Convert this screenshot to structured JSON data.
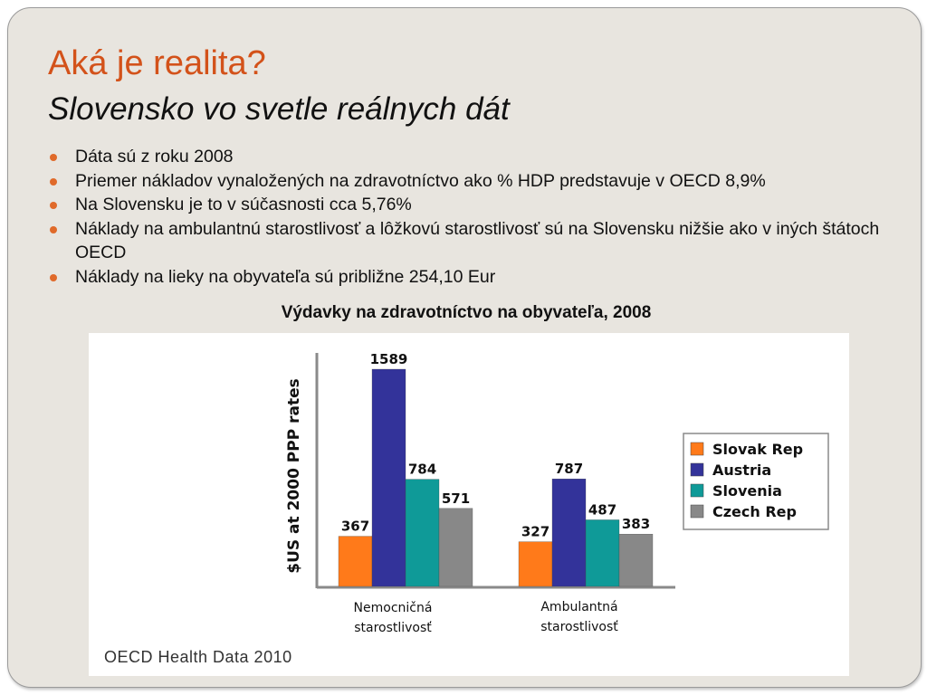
{
  "slide": {
    "title": "Aká je realita?",
    "subtitle": "Slovensko vo svetle reálnych dát",
    "bullets": [
      "Dáta sú z roku 2008",
      "Priemer nákladov vynaložených na zdravotníctvo ako % HDP predstavuje v OECD 8,9%",
      "Na Slovensku je to v súčasnosti cca 5,76%",
      "Náklady na ambulantnú starostlivosť a lôžkovú starostlivosť sú na Slovensku nižšie ako v iných štátoch OECD",
      "Náklady na lieky na obyvateľa sú približne 254,10 Eur"
    ],
    "colors": {
      "title": "#d3521a",
      "bullet": "#e06a2a",
      "background": "#e8e5df"
    }
  },
  "chart_data": {
    "type": "bar",
    "title": "Výdavky na zdravotníctvo na obyvateľa, 2008",
    "ylabel": "$US at 2000 PPP rates",
    "xlabel": "",
    "categories": [
      "Nemocničná starostlivosť",
      "Ambulantná starostlivosť"
    ],
    "series": [
      {
        "name": "Slovak Rep",
        "values": [
          367,
          327
        ],
        "color": "#ff7a1a"
      },
      {
        "name": "Austria",
        "values": [
          1589,
          787
        ],
        "color": "#33339a"
      },
      {
        "name": "Slovenia",
        "values": [
          784,
          487
        ],
        "color": "#0f9a98"
      },
      {
        "name": "Czech Rep",
        "values": [
          571,
          383
        ],
        "color": "#888888"
      }
    ],
    "ylim": [
      0,
      1800
    ],
    "grid": false,
    "legend": "right",
    "source": "OECD Health Data 2010"
  }
}
